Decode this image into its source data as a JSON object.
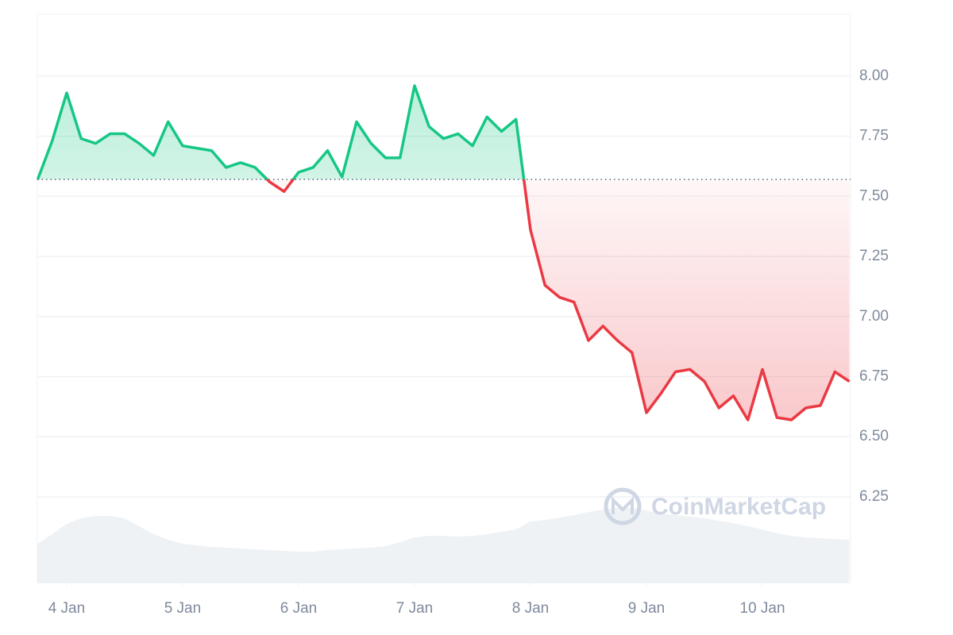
{
  "chart_data": {
    "type": "line",
    "watermark": "CoinMarketCap",
    "x": [
      3.75,
      3.875,
      4,
      4.125,
      4.25,
      4.375,
      4.5,
      4.625,
      4.75,
      4.875,
      5,
      5.125,
      5.25,
      5.375,
      5.5,
      5.625,
      5.75,
      5.875,
      6,
      6.125,
      6.25,
      6.375,
      6.5,
      6.625,
      6.75,
      6.875,
      7,
      7.125,
      7.25,
      7.375,
      7.5,
      7.625,
      7.75,
      7.875,
      8,
      8.125,
      8.25,
      8.375,
      8.5,
      8.625,
      8.75,
      8.875,
      9,
      9.125,
      9.25,
      9.375,
      9.5,
      9.625,
      9.75,
      9.875,
      10,
      10.125,
      10.25,
      10.375,
      10.5,
      10.625,
      10.75
    ],
    "series": [
      {
        "name": "Price",
        "color": "#16c784",
        "down_color": "#ea3943",
        "values": [
          7.57,
          7.73,
          7.93,
          7.74,
          7.72,
          7.76,
          7.76,
          7.72,
          7.67,
          7.81,
          7.71,
          7.7,
          7.69,
          7.62,
          7.64,
          7.62,
          7.56,
          7.52,
          7.6,
          7.62,
          7.69,
          7.58,
          7.81,
          7.72,
          7.66,
          7.66,
          7.96,
          7.79,
          7.74,
          7.76,
          7.71,
          7.83,
          7.77,
          7.82,
          7.36,
          7.13,
          7.08,
          7.06,
          6.9,
          6.96,
          6.9,
          6.85,
          6.6,
          6.68,
          6.77,
          6.78,
          6.73,
          6.62,
          6.67,
          6.57,
          6.78,
          6.58,
          6.57,
          6.62,
          6.63,
          6.77,
          6.73
        ]
      },
      {
        "name": "Volume",
        "color": "#eff2f5",
        "values": [
          50,
          62,
          75,
          82,
          85,
          85,
          82,
          72,
          62,
          55,
          50,
          48,
          46,
          45,
          44,
          43,
          42,
          41,
          40,
          40,
          42,
          43,
          44,
          45,
          47,
          52,
          58,
          60,
          60,
          59,
          60,
          62,
          65,
          68,
          78,
          80,
          83,
          86,
          90,
          93,
          95,
          95,
          92,
          88,
          86,
          84,
          82,
          79,
          76,
          72,
          68,
          63,
          60,
          58,
          57,
          56,
          55
        ]
      }
    ],
    "baseline": 7.57,
    "xlim": [
      3.747,
      10.76
    ],
    "xticks": [
      {
        "value": 4,
        "label": "4 Jan"
      },
      {
        "value": 5,
        "label": "5 Jan"
      },
      {
        "value": 6,
        "label": "6 Jan"
      },
      {
        "value": 7,
        "label": "7 Jan"
      },
      {
        "value": 8,
        "label": "8 Jan"
      },
      {
        "value": 9,
        "label": "9 Jan"
      },
      {
        "value": 10,
        "label": "10 Jan"
      }
    ],
    "ylim": [
      5.89,
      8.257
    ],
    "yticks": [
      {
        "value": 6.25,
        "label": "6.25"
      },
      {
        "value": 6.5,
        "label": "6.50"
      },
      {
        "value": 6.75,
        "label": "6.75"
      },
      {
        "value": 7,
        "label": "7.00"
      },
      {
        "value": 7.25,
        "label": "7.25"
      },
      {
        "value": 7.5,
        "label": "7.50"
      },
      {
        "value": 7.75,
        "label": "7.75"
      },
      {
        "value": 8,
        "label": "8.00"
      }
    ],
    "grid": true
  }
}
